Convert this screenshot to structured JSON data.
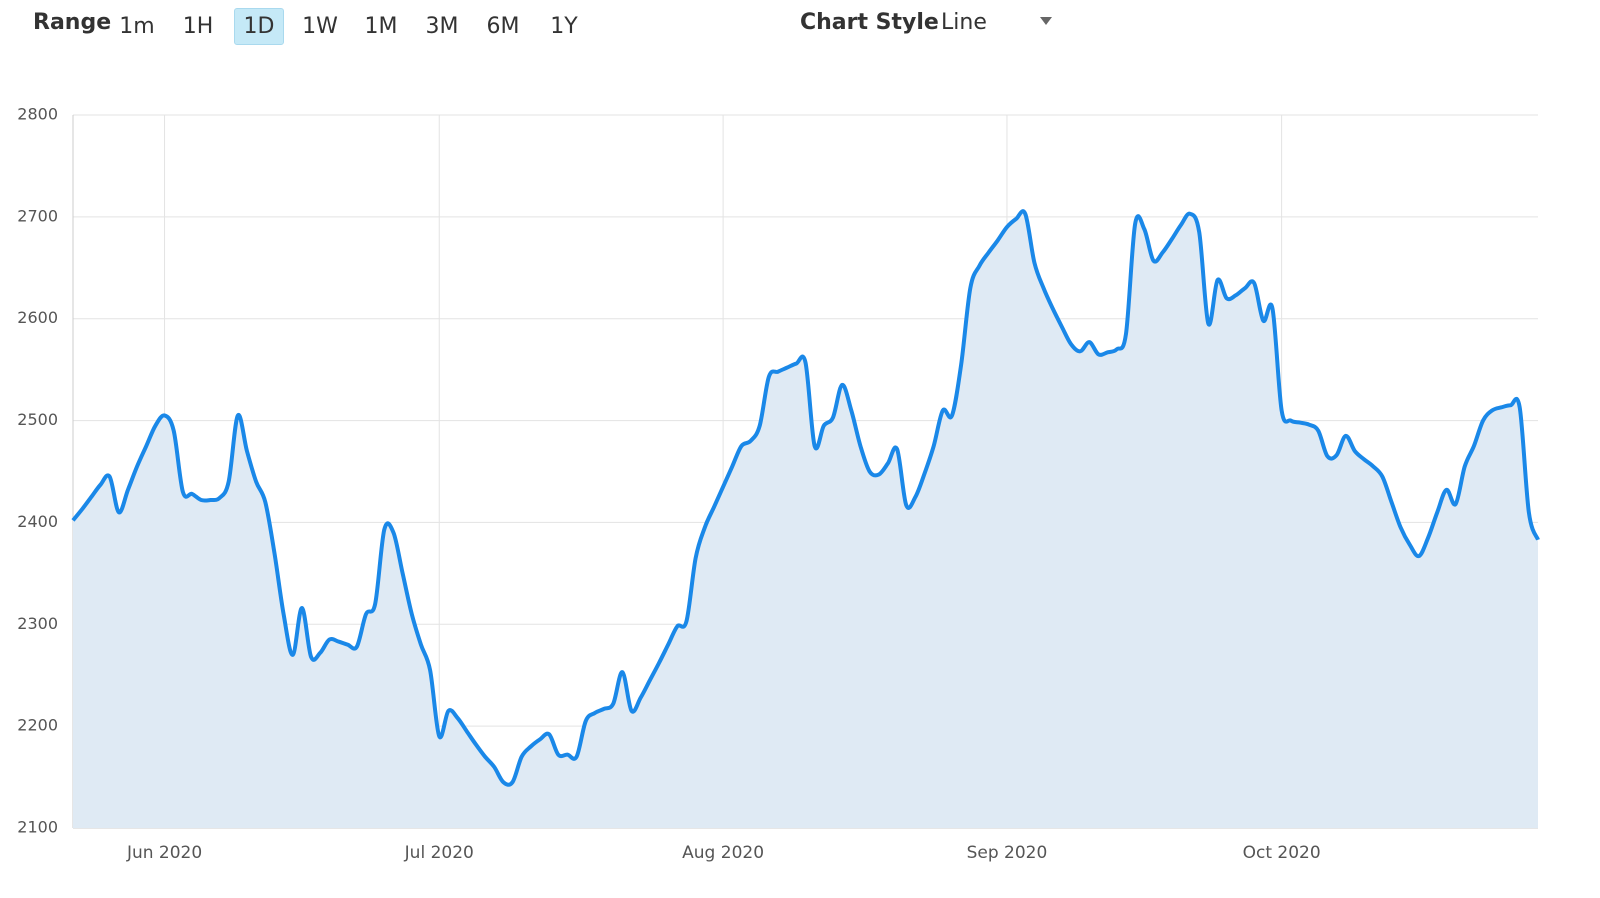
{
  "toolbar": {
    "range_label": "Range",
    "ranges": [
      "1m",
      "1H",
      "1D",
      "1W",
      "1M",
      "3M",
      "6M",
      "1Y"
    ],
    "selected": "1D",
    "style_label": "Chart Style",
    "style_value": "Line"
  },
  "chart_data": {
    "type": "area",
    "color": "#1a88e8",
    "fill": "#dfeaf4",
    "grid": true,
    "ylim": [
      2100,
      2800
    ],
    "yticks": [
      2100,
      2200,
      2300,
      2400,
      2500,
      2600,
      2700,
      2800
    ],
    "categories": [
      null,
      null,
      null,
      null,
      null,
      null,
      null,
      null,
      null,
      null,
      "Jun 2020",
      null,
      null,
      null,
      null,
      null,
      null,
      null,
      null,
      null,
      null,
      null,
      null,
      null,
      null,
      null,
      null,
      null,
      null,
      null,
      null,
      null,
      null,
      null,
      null,
      null,
      null,
      null,
      null,
      null,
      "Jul 2020",
      null,
      null,
      null,
      null,
      null,
      null,
      null,
      null,
      null,
      null,
      null,
      null,
      null,
      null,
      null,
      null,
      null,
      null,
      null,
      null,
      null,
      null,
      null,
      null,
      null,
      null,
      null,
      null,
      null,
      null,
      "Aug 2020",
      null,
      null,
      null,
      null,
      null,
      null,
      null,
      null,
      null,
      null,
      null,
      null,
      null,
      null,
      null,
      null,
      null,
      null,
      null,
      null,
      null,
      null,
      null,
      null,
      null,
      null,
      null,
      null,
      null,
      null,
      "Sep 2020",
      null,
      null,
      null,
      null,
      null,
      null,
      null,
      null,
      null,
      null,
      null,
      null,
      null,
      null,
      null,
      null,
      null,
      null,
      null,
      null,
      null,
      null,
      null,
      null,
      null,
      null,
      null,
      null,
      null,
      "Oct 2020",
      null,
      null,
      null,
      null,
      null,
      null,
      null,
      null,
      null,
      null,
      null,
      null,
      null,
      null,
      null,
      null,
      null,
      null,
      null,
      null,
      null,
      null,
      null,
      null,
      null,
      null,
      null,
      null
    ],
    "values": [
      2402,
      2413,
      2425,
      2437,
      2445,
      2410,
      2432,
      2455,
      2475,
      2495,
      2505,
      2490,
      2430,
      2428,
      2422,
      2422,
      2424,
      2440,
      2505,
      2470,
      2440,
      2420,
      2370,
      2310,
      2270,
      2316,
      2268,
      2272,
      2285,
      2283,
      2280,
      2278,
      2310,
      2320,
      2393,
      2390,
      2350,
      2310,
      2280,
      2255,
      2190,
      2215,
      2208,
      2195,
      2182,
      2170,
      2160,
      2145,
      2145,
      2170,
      2180,
      2187,
      2192,
      2172,
      2172,
      2170,
      2205,
      2213,
      2217,
      2222,
      2253,
      2215,
      2228,
      2245,
      2262,
      2280,
      2298,
      2303,
      2365,
      2395,
      2415,
      2435,
      2455,
      2475,
      2480,
      2495,
      2543,
      2548,
      2552,
      2556,
      2557,
      2475,
      2495,
      2503,
      2535,
      2510,
      2475,
      2450,
      2447,
      2458,
      2472,
      2417,
      2425,
      2448,
      2475,
      2510,
      2505,
      2555,
      2630,
      2652,
      2665,
      2677,
      2690,
      2698,
      2703,
      2655,
      2630,
      2610,
      2592,
      2575,
      2568,
      2577,
      2565,
      2567,
      2570,
      2585,
      2693,
      2688,
      2657,
      2665,
      2678,
      2692,
      2703,
      2685,
      2595,
      2638,
      2620,
      2623,
      2630,
      2635,
      2598,
      2610,
      2510,
      2500,
      2498,
      2496,
      2490,
      2465,
      2466,
      2485,
      2470,
      2462,
      2455,
      2445,
      2420,
      2395,
      2378,
      2367,
      2385,
      2410,
      2432,
      2418,
      2455,
      2475,
      2500,
      2510,
      2513,
      2515,
      2513,
      2410,
      2383
    ]
  }
}
